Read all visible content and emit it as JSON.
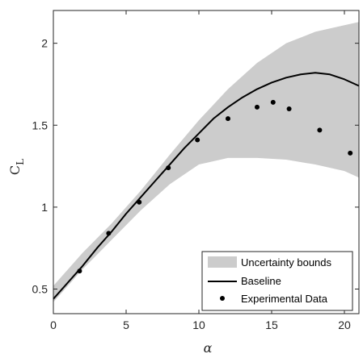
{
  "chart_data": {
    "type": "line",
    "xlabel": "α",
    "ylabel": "C",
    "ylabel_subscript": "L",
    "xlim": [
      0,
      21
    ],
    "ylim": [
      0.35,
      2.2
    ],
    "x_ticks": [
      0,
      5,
      10,
      15,
      20
    ],
    "y_ticks": [
      0.5,
      1,
      1.5,
      2
    ],
    "x_tick_labels": [
      "0",
      "5",
      "10",
      "15",
      "20"
    ],
    "y_tick_labels": [
      "0.5",
      "1",
      "1.5",
      "2"
    ],
    "grid": false,
    "legend_position": "bottom-right",
    "colors": {
      "band": "#cccccc",
      "baseline": "#000000",
      "points": "#000000",
      "axes": "#262626"
    },
    "series": [
      {
        "name": "Uncertainty bounds",
        "kind": "band",
        "x": [
          0,
          2,
          4,
          6,
          8,
          10,
          12,
          14,
          16,
          18,
          20,
          21
        ],
        "lower": [
          0.42,
          0.62,
          0.8,
          0.98,
          1.14,
          1.26,
          1.3,
          1.3,
          1.29,
          1.26,
          1.22,
          1.18
        ],
        "upper": [
          0.52,
          0.72,
          0.9,
          1.1,
          1.32,
          1.53,
          1.72,
          1.88,
          2.0,
          2.07,
          2.11,
          2.13
        ]
      },
      {
        "name": "Baseline",
        "kind": "line",
        "x": [
          0,
          1,
          2,
          3,
          4,
          5,
          6,
          7,
          8,
          9,
          10,
          11,
          12,
          13,
          14,
          15,
          16,
          17,
          18,
          19,
          20,
          21
        ],
        "y": [
          0.44,
          0.54,
          0.64,
          0.75,
          0.85,
          0.96,
          1.06,
          1.16,
          1.26,
          1.36,
          1.45,
          1.54,
          1.61,
          1.67,
          1.72,
          1.76,
          1.79,
          1.81,
          1.82,
          1.81,
          1.78,
          1.74
        ]
      },
      {
        "name": "Experimental Data",
        "kind": "scatter",
        "x": [
          1.8,
          3.8,
          5.9,
          7.9,
          9.9,
          12.0,
          14.0,
          15.1,
          16.2,
          18.3,
          20.4
        ],
        "y": [
          0.61,
          0.84,
          1.03,
          1.24,
          1.41,
          1.54,
          1.61,
          1.64,
          1.6,
          1.47,
          1.33
        ]
      }
    ]
  }
}
